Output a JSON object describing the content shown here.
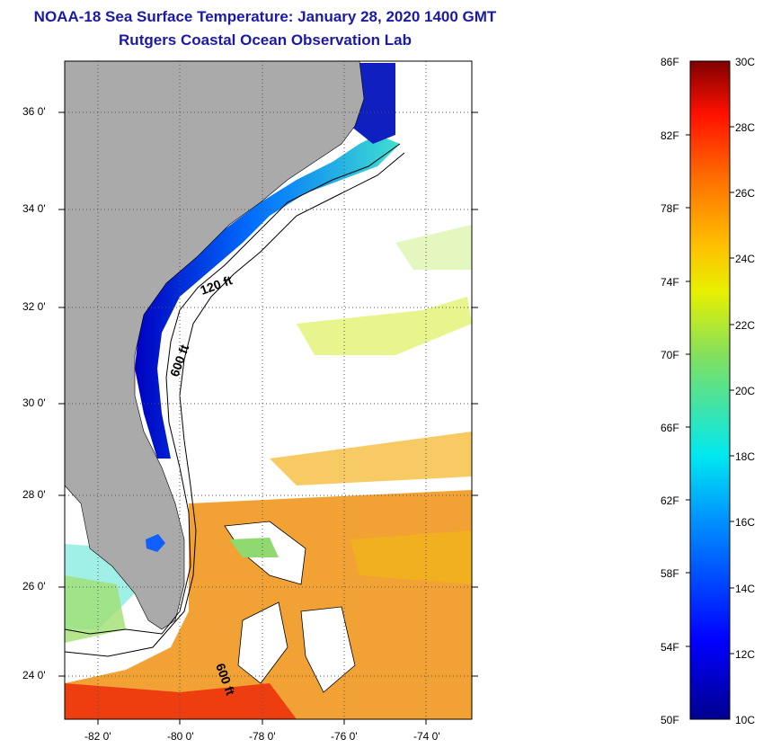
{
  "title": {
    "line1": "NOAA-18 Sea Surface Temperature:  January 28, 2020 1400 GMT",
    "line2": "Rutgers Coastal Ocean Observation Lab"
  },
  "colors": {
    "title": "#1a1aa6",
    "land": "#aaaaaa",
    "ocean_no_data": "#ffffff",
    "graticule": "#555555"
  },
  "map": {
    "lat_ticks": [
      "36 0'",
      "34 0'",
      "32 0'",
      "30 0'",
      "28 0'",
      "26 0'",
      "24 0'"
    ],
    "lon_ticks": [
      "-82 0'",
      "-80 0'",
      "-78 0'",
      "-76 0'",
      "-74 0'"
    ],
    "contour_labels": [
      "120 ft",
      "600 ft",
      "600 ft"
    ]
  },
  "colorbar": {
    "fahrenheit": [
      "86F",
      "82F",
      "78F",
      "74F",
      "70F",
      "66F",
      "62F",
      "58F",
      "54F",
      "50F"
    ],
    "celsius": [
      "30C",
      "28C",
      "26C",
      "24C",
      "22C",
      "20C",
      "18C",
      "16C",
      "14C",
      "12C",
      "10C"
    ],
    "min_c": 10,
    "max_c": 30
  }
}
